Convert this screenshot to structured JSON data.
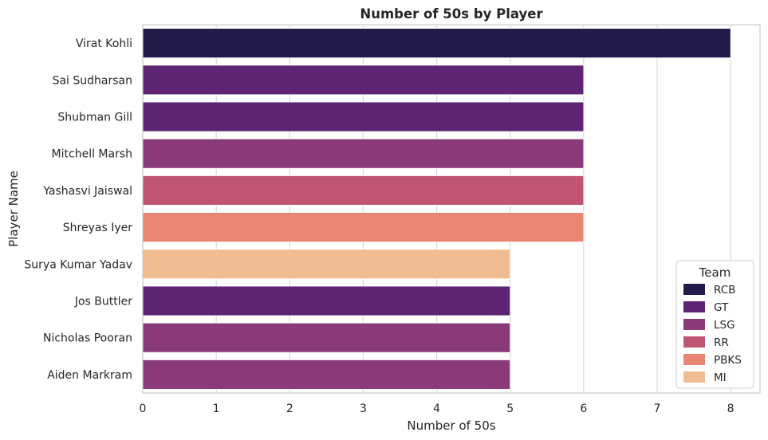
{
  "chart_data": {
    "type": "bar",
    "orientation": "horizontal",
    "title": "Number of 50s by Player",
    "xlabel": "Number of 50s",
    "ylabel": "Player Name",
    "xlim": [
      0,
      8.4
    ],
    "xticks": [
      0,
      1,
      2,
      3,
      4,
      5,
      6,
      7,
      8
    ],
    "grid": true,
    "categories": [
      "Virat Kohli",
      "Sai Sudharsan",
      "Shubman Gill",
      "Mitchell Marsh",
      "Yashasvi Jaiswal",
      "Shreyas Iyer",
      "Surya Kumar Yadav",
      "Jos Buttler",
      "Nicholas Pooran",
      "Aiden Markram"
    ],
    "values": [
      8,
      6,
      6,
      6,
      6,
      6,
      5,
      5,
      5,
      5
    ],
    "teams": [
      "RCB",
      "GT",
      "GT",
      "LSG",
      "RR",
      "PBKS",
      "MI",
      "GT",
      "LSG",
      "LSG"
    ],
    "legend": {
      "title": "Team",
      "placement": "lower-right",
      "entries": [
        {
          "name": "RCB",
          "color": "#221A49"
        },
        {
          "name": "GT",
          "color": "#5C2472"
        },
        {
          "name": "LSG",
          "color": "#8A3A78"
        },
        {
          "name": "RR",
          "color": "#C05573"
        },
        {
          "name": "PBKS",
          "color": "#E98572"
        },
        {
          "name": "MI",
          "color": "#F0BC91"
        }
      ]
    }
  }
}
